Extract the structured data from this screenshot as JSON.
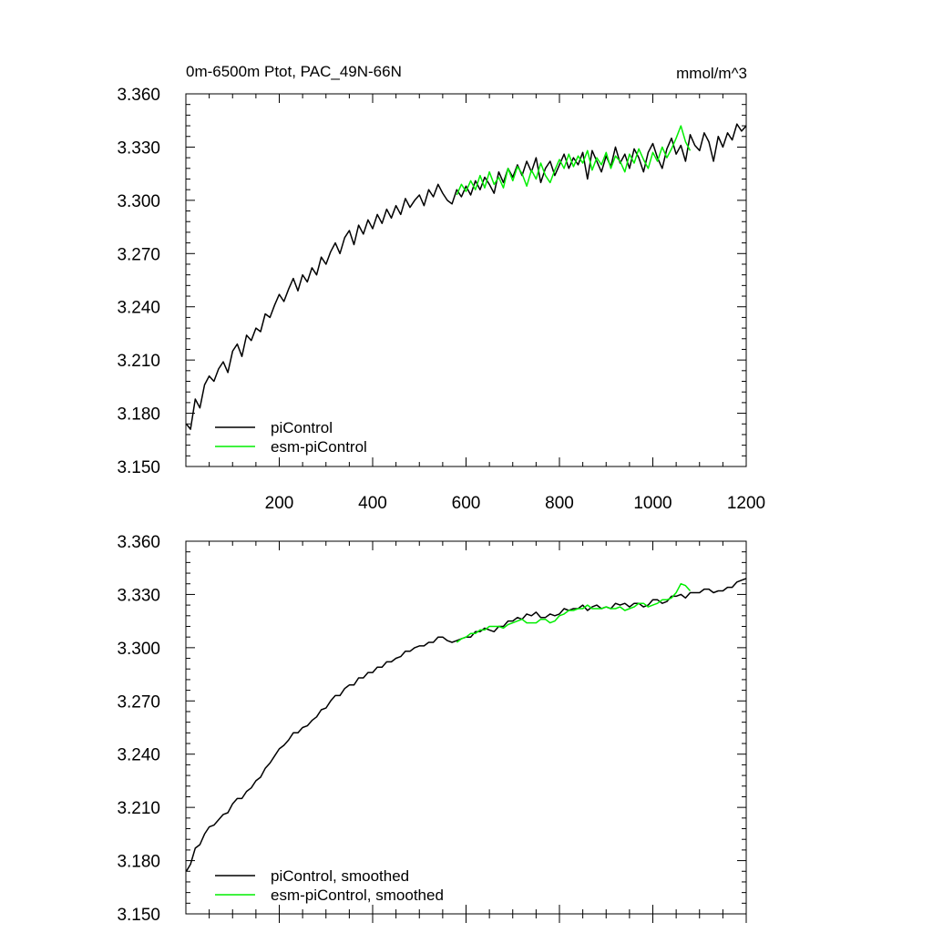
{
  "chart_data": [
    {
      "type": "line",
      "title": "0m-6500m Ptot, PAC_49N-66N",
      "units": "mmol/m^3",
      "xlim": [
        0,
        1200
      ],
      "ylim": [
        3.15,
        3.36
      ],
      "xticks": [
        200,
        400,
        600,
        800,
        1000,
        1200
      ],
      "xtick_labels": [
        "200",
        "400",
        "600",
        "800",
        "1000",
        "1200"
      ],
      "yticks": [
        3.15,
        3.18,
        3.21,
        3.24,
        3.27,
        3.3,
        3.33,
        3.36
      ],
      "ytick_labels": [
        "3.150",
        "3.180",
        "3.210",
        "3.240",
        "3.270",
        "3.300",
        "3.330",
        "3.360"
      ],
      "legend_position": "bottom-left",
      "series": [
        {
          "name": "piControl",
          "color": "#000000",
          "x": [
            1,
            10,
            20,
            30,
            40,
            50,
            60,
            70,
            80,
            90,
            100,
            110,
            120,
            130,
            140,
            150,
            160,
            170,
            180,
            190,
            200,
            210,
            220,
            230,
            240,
            250,
            260,
            270,
            280,
            290,
            300,
            310,
            320,
            330,
            340,
            350,
            360,
            370,
            380,
            390,
            400,
            410,
            420,
            430,
            440,
            450,
            460,
            470,
            480,
            490,
            500,
            510,
            520,
            530,
            540,
            550,
            560,
            570,
            580,
            590,
            600,
            610,
            620,
            630,
            640,
            650,
            660,
            670,
            680,
            690,
            700,
            710,
            720,
            730,
            740,
            750,
            760,
            770,
            780,
            790,
            800,
            810,
            820,
            830,
            840,
            850,
            860,
            870,
            880,
            890,
            900,
            910,
            920,
            930,
            940,
            950,
            960,
            970,
            980,
            990,
            1000,
            1010,
            1020,
            1030,
            1040,
            1050,
            1060,
            1070,
            1080,
            1090,
            1100,
            1110,
            1120,
            1130,
            1140,
            1150,
            1160,
            1170,
            1180,
            1190,
            1200
          ],
          "values": [
            3.174,
            3.171,
            3.188,
            3.183,
            3.196,
            3.201,
            3.198,
            3.205,
            3.209,
            3.203,
            3.215,
            3.219,
            3.212,
            3.224,
            3.221,
            3.228,
            3.226,
            3.236,
            3.234,
            3.241,
            3.247,
            3.243,
            3.25,
            3.256,
            3.249,
            3.258,
            3.254,
            3.262,
            3.258,
            3.268,
            3.264,
            3.271,
            3.276,
            3.27,
            3.279,
            3.283,
            3.275,
            3.286,
            3.281,
            3.289,
            3.284,
            3.292,
            3.287,
            3.295,
            3.29,
            3.297,
            3.292,
            3.301,
            3.296,
            3.3,
            3.303,
            3.297,
            3.306,
            3.302,
            3.309,
            3.304,
            3.3,
            3.298,
            3.306,
            3.302,
            3.308,
            3.303,
            3.311,
            3.306,
            3.313,
            3.309,
            3.304,
            3.316,
            3.31,
            3.318,
            3.313,
            3.32,
            3.314,
            3.322,
            3.316,
            3.324,
            3.31,
            3.318,
            3.322,
            3.314,
            3.32,
            3.326,
            3.318,
            3.324,
            3.32,
            3.327,
            3.312,
            3.328,
            3.322,
            3.316,
            3.325,
            3.319,
            3.33,
            3.321,
            3.326,
            3.318,
            3.329,
            3.324,
            3.316,
            3.327,
            3.332,
            3.324,
            3.318,
            3.329,
            3.335,
            3.326,
            3.331,
            3.322,
            3.337,
            3.331,
            3.328,
            3.338,
            3.333,
            3.322,
            3.336,
            3.33,
            3.338,
            3.334,
            3.343,
            3.339,
            3.342
          ]
        },
        {
          "name": "esm-piControl",
          "color": "#00ee00",
          "x": [
            580,
            590,
            600,
            610,
            620,
            630,
            640,
            650,
            660,
            670,
            680,
            690,
            700,
            710,
            720,
            730,
            740,
            750,
            760,
            770,
            780,
            790,
            800,
            810,
            820,
            830,
            840,
            850,
            860,
            870,
            880,
            890,
            900,
            910,
            920,
            930,
            940,
            950,
            960,
            970,
            980,
            990,
            1000,
            1010,
            1020,
            1030,
            1040,
            1050,
            1060,
            1070,
            1080
          ],
          "values": [
            3.303,
            3.309,
            3.305,
            3.311,
            3.306,
            3.314,
            3.307,
            3.316,
            3.309,
            3.313,
            3.307,
            3.318,
            3.311,
            3.319,
            3.315,
            3.308,
            3.317,
            3.312,
            3.321,
            3.314,
            3.31,
            3.317,
            3.323,
            3.318,
            3.326,
            3.319,
            3.325,
            3.321,
            3.328,
            3.317,
            3.324,
            3.32,
            3.327,
            3.318,
            3.325,
            3.322,
            3.316,
            3.326,
            3.321,
            3.329,
            3.323,
            3.318,
            3.327,
            3.322,
            3.33,
            3.324,
            3.329,
            3.335,
            3.342,
            3.333,
            3.328
          ]
        }
      ]
    },
    {
      "type": "line",
      "xlim": [
        0,
        1200
      ],
      "ylim": [
        3.15,
        3.36
      ],
      "xticks": [
        200,
        400,
        600,
        800,
        1000,
        1200
      ],
      "yticks": [
        3.15,
        3.18,
        3.21,
        3.24,
        3.27,
        3.3,
        3.33,
        3.36
      ],
      "ytick_labels": [
        "3.150",
        "3.180",
        "3.210",
        "3.240",
        "3.270",
        "3.300",
        "3.330",
        "3.360"
      ],
      "legend_position": "bottom-left",
      "series": [
        {
          "name": "piControl, smoothed",
          "color": "#000000",
          "x": [
            1,
            10,
            20,
            30,
            40,
            50,
            60,
            70,
            80,
            90,
            100,
            110,
            120,
            130,
            140,
            150,
            160,
            170,
            180,
            190,
            200,
            210,
            220,
            230,
            240,
            250,
            260,
            270,
            280,
            290,
            300,
            310,
            320,
            330,
            340,
            350,
            360,
            370,
            380,
            390,
            400,
            410,
            420,
            430,
            440,
            450,
            460,
            470,
            480,
            490,
            500,
            510,
            520,
            530,
            540,
            550,
            560,
            570,
            580,
            590,
            600,
            610,
            620,
            630,
            640,
            650,
            660,
            670,
            680,
            690,
            700,
            710,
            720,
            730,
            740,
            750,
            760,
            770,
            780,
            790,
            800,
            810,
            820,
            830,
            840,
            850,
            860,
            870,
            880,
            890,
            900,
            910,
            920,
            930,
            940,
            950,
            960,
            970,
            980,
            990,
            1000,
            1010,
            1020,
            1030,
            1040,
            1050,
            1060,
            1070,
            1080,
            1090,
            1100,
            1110,
            1120,
            1130,
            1140,
            1150,
            1160,
            1170,
            1180,
            1190,
            1200
          ],
          "values": [
            3.174,
            3.178,
            3.187,
            3.189,
            3.195,
            3.199,
            3.2,
            3.203,
            3.206,
            3.207,
            3.212,
            3.215,
            3.215,
            3.219,
            3.221,
            3.225,
            3.227,
            3.232,
            3.235,
            3.239,
            3.243,
            3.245,
            3.248,
            3.252,
            3.252,
            3.255,
            3.256,
            3.259,
            3.261,
            3.265,
            3.266,
            3.27,
            3.273,
            3.273,
            3.277,
            3.279,
            3.279,
            3.283,
            3.283,
            3.286,
            3.286,
            3.289,
            3.289,
            3.292,
            3.292,
            3.294,
            3.295,
            3.298,
            3.298,
            3.3,
            3.301,
            3.301,
            3.303,
            3.303,
            3.306,
            3.306,
            3.304,
            3.303,
            3.304,
            3.305,
            3.306,
            3.306,
            3.309,
            3.309,
            3.311,
            3.31,
            3.309,
            3.312,
            3.312,
            3.315,
            3.315,
            3.317,
            3.316,
            3.319,
            3.318,
            3.32,
            3.317,
            3.317,
            3.319,
            3.318,
            3.319,
            3.322,
            3.321,
            3.322,
            3.322,
            3.324,
            3.321,
            3.323,
            3.324,
            3.322,
            3.323,
            3.322,
            3.325,
            3.324,
            3.325,
            3.323,
            3.325,
            3.325,
            3.323,
            3.324,
            3.327,
            3.327,
            3.325,
            3.326,
            3.329,
            3.329,
            3.33,
            3.328,
            3.331,
            3.331,
            3.331,
            3.333,
            3.333,
            3.331,
            3.332,
            3.332,
            3.334,
            3.334,
            3.337,
            3.338,
            3.339
          ]
        },
        {
          "name": "esm-piControl, smoothed",
          "color": "#00ee00",
          "x": [
            580,
            590,
            600,
            610,
            620,
            630,
            640,
            650,
            660,
            670,
            680,
            690,
            700,
            710,
            720,
            730,
            740,
            750,
            760,
            770,
            780,
            790,
            800,
            810,
            820,
            830,
            840,
            850,
            860,
            870,
            880,
            890,
            900,
            910,
            920,
            930,
            940,
            950,
            960,
            970,
            980,
            990,
            1000,
            1010,
            1020,
            1030,
            1040,
            1050,
            1060,
            1070,
            1080
          ],
          "values": [
            3.303,
            3.305,
            3.306,
            3.308,
            3.308,
            3.31,
            3.31,
            3.312,
            3.312,
            3.312,
            3.311,
            3.313,
            3.314,
            3.315,
            3.316,
            3.314,
            3.314,
            3.314,
            3.316,
            3.316,
            3.314,
            3.315,
            3.318,
            3.319,
            3.321,
            3.321,
            3.322,
            3.322,
            3.324,
            3.322,
            3.322,
            3.322,
            3.323,
            3.322,
            3.322,
            3.323,
            3.321,
            3.322,
            3.323,
            3.325,
            3.325,
            3.323,
            3.324,
            3.325,
            3.327,
            3.327,
            3.328,
            3.331,
            3.336,
            3.335,
            3.332
          ]
        }
      ]
    }
  ]
}
